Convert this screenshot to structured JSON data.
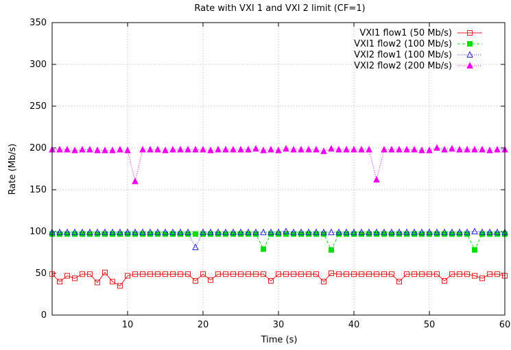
{
  "chart_data": {
    "type": "line",
    "title": "Rate with VXI 1 and VXI 2 limit (CF=1)",
    "xlabel": "Time (s)",
    "ylabel": "Rate (Mb/s)",
    "xlim": [
      0,
      60
    ],
    "ylim": [
      0,
      350
    ],
    "xticks": [
      10,
      20,
      30,
      40,
      50,
      60
    ],
    "yticks": [
      0,
      50,
      100,
      150,
      200,
      250,
      300,
      350
    ],
    "grid": true,
    "legend_position": "top-right",
    "x": [
      0,
      1,
      2,
      3,
      4,
      5,
      6,
      7,
      8,
      9,
      10,
      11,
      12,
      13,
      14,
      15,
      16,
      17,
      18,
      19,
      20,
      21,
      22,
      23,
      24,
      25,
      26,
      27,
      28,
      29,
      30,
      31,
      32,
      33,
      34,
      35,
      36,
      37,
      38,
      39,
      40,
      41,
      42,
      43,
      44,
      45,
      46,
      47,
      48,
      49,
      50,
      51,
      52,
      53,
      54,
      55,
      56,
      57,
      58,
      59,
      60
    ],
    "series": [
      {
        "name": "VXI1 flow1 (50 Mb/s)",
        "color": "#e41a1c",
        "marker": "open-square",
        "dash": "solid",
        "values": [
          49,
          40,
          47,
          44,
          49,
          49,
          39,
          51,
          40,
          35,
          47,
          49,
          49,
          49,
          49,
          49,
          49,
          49,
          49,
          41,
          49,
          42,
          49,
          49,
          49,
          49,
          49,
          49,
          49,
          41,
          49,
          49,
          49,
          49,
          49,
          49,
          40,
          50,
          49,
          49,
          49,
          49,
          49,
          49,
          49,
          49,
          40,
          49,
          49,
          49,
          49,
          49,
          41,
          49,
          49,
          49,
          47,
          44,
          49,
          49,
          47
        ]
      },
      {
        "name": "VXI1 flow2 (100 Mb/s)",
        "color": "#00e000",
        "marker": "filled-square",
        "dash": "dashed",
        "values": [
          97,
          97,
          97,
          97,
          97,
          97,
          97,
          97,
          97,
          97,
          97,
          97,
          97,
          97,
          97,
          97,
          97,
          97,
          97,
          97,
          97,
          97,
          97,
          97,
          97,
          97,
          97,
          97,
          79,
          97,
          97,
          97,
          97,
          97,
          97,
          97,
          97,
          78,
          97,
          97,
          97,
          97,
          97,
          97,
          97,
          97,
          97,
          97,
          97,
          97,
          97,
          97,
          97,
          97,
          97,
          97,
          78,
          97,
          97,
          97,
          97
        ]
      },
      {
        "name": "VXI2 flow1 (100 Mb/s)",
        "color": "#2222cc",
        "marker": "open-triangle",
        "dash": "dotted",
        "values": [
          99,
          99,
          99,
          99,
          99,
          99,
          99,
          99,
          99,
          99,
          99,
          99,
          99,
          99,
          99,
          99,
          99,
          99,
          99,
          81,
          99,
          99,
          99,
          99,
          99,
          99,
          99,
          99,
          99,
          99,
          99,
          100,
          99,
          99,
          99,
          99,
          99,
          99,
          99,
          99,
          99,
          99,
          99,
          99,
          99,
          99,
          99,
          99,
          99,
          99,
          99,
          99,
          99,
          99,
          99,
          99,
          100,
          99,
          99,
          99,
          99
        ]
      },
      {
        "name": "VXI2 flow2 (200 Mb/s)",
        "color": "#ee00ee",
        "marker": "filled-triangle",
        "dash": "dotted",
        "values": [
          198,
          198,
          198,
          197,
          198,
          198,
          197,
          197,
          197,
          198,
          197,
          160,
          198,
          198,
          198,
          197,
          198,
          198,
          198,
          198,
          198,
          197,
          198,
          198,
          198,
          198,
          198,
          199,
          197,
          198,
          197,
          199,
          198,
          198,
          198,
          198,
          196,
          199,
          198,
          198,
          198,
          198,
          198,
          162,
          198,
          198,
          198,
          198,
          198,
          197,
          197,
          200,
          198,
          199,
          198,
          198,
          198,
          198,
          197,
          198,
          198
        ]
      }
    ]
  }
}
